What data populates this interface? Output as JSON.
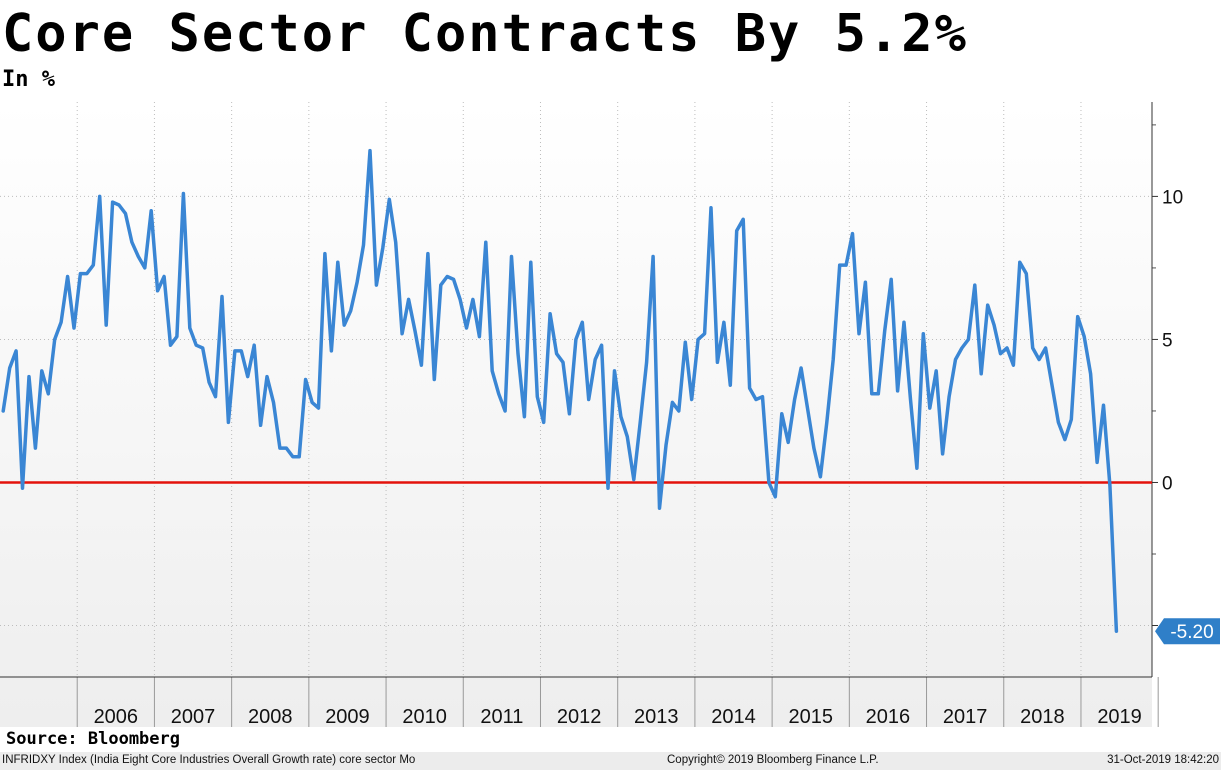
{
  "title": "Core Sector Contracts By 5.2%",
  "subtitle": "In %",
  "source": "Source: Bloomberg",
  "footer": {
    "index_desc": "INFRIDXY Index (India Eight Core Industries Overall Growth rate) core sector  Mo",
    "copyright": "Copyright© 2019 Bloomberg Finance L.P.",
    "timestamp": "31-Oct-2019 18:42:20"
  },
  "colors": {
    "line": "#3a86d4",
    "zero_line": "#e3120b",
    "label_bg": "#2f7fc8"
  },
  "chart_data": {
    "type": "line",
    "title": "Core Sector Contracts By 5.2%",
    "ylabel": "In %",
    "xlabel": "",
    "ylim": [
      -6.8,
      13.3
    ],
    "y_ticks": [
      {
        "value": 10,
        "label": "10"
      },
      {
        "value": 5,
        "label": "5"
      },
      {
        "value": 0,
        "label": "0"
      },
      {
        "value": -5,
        "label": "-5"
      }
    ],
    "x_range": [
      2005.0,
      2019.92
    ],
    "x_ticks": [
      {
        "year": 2006,
        "label": "2006"
      },
      {
        "year": 2007,
        "label": "2007"
      },
      {
        "year": 2008,
        "label": "2008"
      },
      {
        "year": 2009,
        "label": "2009"
      },
      {
        "year": 2010,
        "label": "2010"
      },
      {
        "year": 2011,
        "label": "2011"
      },
      {
        "year": 2012,
        "label": "2012"
      },
      {
        "year": 2013,
        "label": "2013"
      },
      {
        "year": 2014,
        "label": "2014"
      },
      {
        "year": 2015,
        "label": "2015"
      },
      {
        "year": 2016,
        "label": "2016"
      },
      {
        "year": 2017,
        "label": "2017"
      },
      {
        "year": 2018,
        "label": "2018"
      },
      {
        "year": 2019,
        "label": "2019"
      }
    ],
    "reference_line": {
      "value": 0
    },
    "last_value_label": "-5.20",
    "series": [
      {
        "name": "India Eight Core Industries Overall Growth rate",
        "start": "2005-01",
        "frequency": "monthly",
        "values": [
          2.5,
          4.0,
          4.6,
          -0.2,
          3.7,
          1.2,
          3.9,
          3.1,
          5.0,
          5.6,
          7.2,
          5.4,
          7.3,
          7.3,
          7.6,
          10.0,
          5.5,
          9.8,
          9.7,
          9.4,
          8.4,
          7.9,
          7.5,
          9.5,
          6.7,
          7.2,
          4.8,
          5.1,
          10.1,
          5.4,
          4.8,
          4.7,
          3.5,
          3.0,
          6.5,
          2.1,
          4.6,
          4.6,
          3.7,
          4.8,
          2.0,
          3.7,
          2.8,
          1.2,
          1.2,
          0.9,
          0.9,
          3.6,
          2.8,
          2.6,
          8.0,
          4.6,
          7.7,
          5.5,
          6.0,
          7.0,
          8.3,
          11.6,
          6.9,
          8.2,
          9.9,
          8.4,
          5.2,
          6.4,
          5.3,
          4.1,
          8.0,
          3.6,
          6.9,
          7.2,
          7.1,
          6.4,
          5.4,
          6.4,
          5.1,
          8.4,
          3.9,
          3.1,
          2.5,
          7.9,
          4.5,
          2.3,
          7.7,
          3.0,
          2.1,
          5.9,
          4.5,
          4.2,
          2.4,
          5.0,
          5.6,
          2.9,
          4.3,
          4.8,
          -0.2,
          3.9,
          2.3,
          1.6,
          0.1,
          2.1,
          4.2,
          7.9,
          -0.9,
          1.3,
          2.8,
          2.5,
          4.9,
          2.9,
          5.0,
          5.2,
          9.6,
          4.2,
          5.6,
          3.4,
          8.8,
          9.2,
          3.3,
          2.9,
          3.0,
          0.0,
          -0.5,
          2.4,
          1.4,
          2.9,
          4.0,
          2.6,
          1.2,
          0.2,
          2.1,
          4.3,
          7.6,
          7.6,
          8.7,
          5.2,
          7.0,
          3.1,
          3.1,
          5.3,
          7.1,
          3.2,
          5.6,
          2.9,
          0.5,
          5.2,
          2.6,
          3.9,
          1.0,
          3.0,
          4.3,
          4.7,
          5.0,
          6.9,
          3.8,
          6.2,
          5.5,
          4.5,
          4.7,
          4.1,
          7.7,
          7.3,
          4.7,
          4.3,
          4.7,
          3.4,
          2.1,
          1.5,
          2.2,
          5.8,
          5.1,
          3.8,
          0.7,
          2.7,
          -0.1,
          -5.2
        ]
      }
    ]
  }
}
